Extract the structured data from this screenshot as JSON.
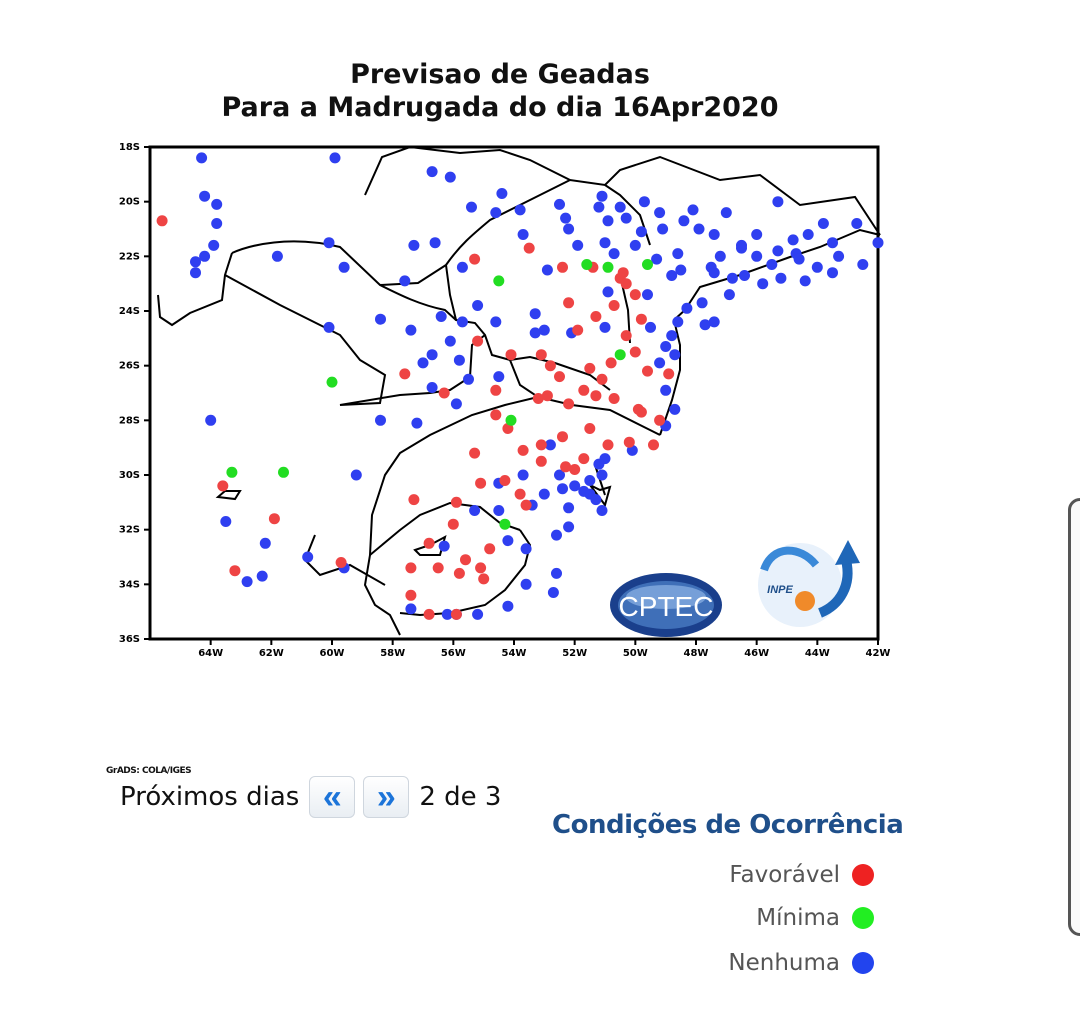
{
  "title_line1": "Previsao  de  Geadas",
  "title_line2": "Para a Madrugada do dia 16Apr2020",
  "map": {
    "lat_labels": [
      "18S",
      "20S",
      "22S",
      "24S",
      "26S",
      "28S",
      "30S",
      "32S",
      "34S",
      "36S"
    ],
    "lon_labels": [
      "64W",
      "62W",
      "60W",
      "58W",
      "56W",
      "54W",
      "52W",
      "50W",
      "48W",
      "46W",
      "44W",
      "42W"
    ],
    "logos": {
      "cptec": "CPTEC",
      "inpe": "INPE"
    },
    "colors": {
      "favoravel": "#ee4444",
      "minima": "#22dd22",
      "nenhuma": "#2f3ff0"
    },
    "stations": {
      "red": [
        [
          -65.6,
          -20.7
        ],
        [
          -63.6,
          -30.4
        ],
        [
          -63.2,
          -33.5
        ],
        [
          -61.9,
          -31.6
        ],
        [
          -59.7,
          -33.2
        ],
        [
          -57.6,
          -26.3
        ],
        [
          -54.6,
          -26.9
        ],
        [
          -54.6,
          -27.8
        ],
        [
          -54.2,
          -28.3
        ],
        [
          -52.4,
          -28.6
        ],
        [
          -51.5,
          -28.3
        ],
        [
          -50.2,
          -28.8
        ],
        [
          -50.7,
          -27.2
        ],
        [
          -49.8,
          -27.7
        ],
        [
          -49.9,
          -27.6
        ],
        [
          -49.4,
          -28.9
        ],
        [
          -49.2,
          -28.0
        ],
        [
          -49.6,
          -26.2
        ],
        [
          -48.9,
          -26.3
        ],
        [
          -50.3,
          -24.9
        ],
        [
          -51.5,
          -26.1
        ],
        [
          -51.1,
          -26.5
        ],
        [
          -52.5,
          -26.4
        ],
        [
          -53.2,
          -27.2
        ],
        [
          -51.7,
          -26.9
        ],
        [
          -52.9,
          -27.1
        ],
        [
          -52.2,
          -27.4
        ],
        [
          -51.3,
          -27.1
        ],
        [
          -50.8,
          -25.9
        ],
        [
          -50.0,
          -25.5
        ],
        [
          -51.3,
          -24.2
        ],
        [
          -51.9,
          -24.7
        ],
        [
          -49.8,
          -24.3
        ],
        [
          -50.7,
          -23.8
        ],
        [
          -52.2,
          -23.7
        ],
        [
          -50.0,
          -23.4
        ],
        [
          -50.5,
          -22.8
        ],
        [
          -50.4,
          -22.6
        ],
        [
          -51.4,
          -22.4
        ],
        [
          -50.3,
          -23.0
        ],
        [
          -52.4,
          -22.4
        ],
        [
          -53.5,
          -21.7
        ],
        [
          -55.3,
          -22.1
        ],
        [
          -55.2,
          -25.1
        ],
        [
          -53.1,
          -25.6
        ],
        [
          -54.1,
          -25.6
        ],
        [
          -52.8,
          -26.0
        ],
        [
          -56.3,
          -27.0
        ],
        [
          -55.3,
          -29.2
        ],
        [
          -53.7,
          -29.1
        ],
        [
          -53.1,
          -29.5
        ],
        [
          -52.3,
          -29.7
        ],
        [
          -52.0,
          -29.8
        ],
        [
          -50.9,
          -28.9
        ],
        [
          -51.7,
          -29.4
        ],
        [
          -53.1,
          -28.9
        ],
        [
          -53.8,
          -30.7
        ],
        [
          -54.3,
          -30.2
        ],
        [
          -53.6,
          -31.1
        ],
        [
          -55.1,
          -30.3
        ],
        [
          -55.9,
          -31.0
        ],
        [
          -56.0,
          -31.8
        ],
        [
          -57.3,
          -30.9
        ],
        [
          -56.8,
          -32.5
        ],
        [
          -56.5,
          -33.4
        ],
        [
          -55.6,
          -33.1
        ],
        [
          -55.8,
          -33.6
        ],
        [
          -55.1,
          -33.4
        ],
        [
          -55.0,
          -33.8
        ],
        [
          -57.4,
          -34.4
        ],
        [
          -56.8,
          -35.1
        ],
        [
          -55.9,
          -35.1
        ],
        [
          -54.8,
          -32.7
        ],
        [
          -57.4,
          -33.4
        ]
      ],
      "green": [
        [
          -51.6,
          -22.3
        ],
        [
          -50.9,
          -22.4
        ],
        [
          -49.6,
          -22.3
        ],
        [
          -54.5,
          -22.9
        ],
        [
          -50.5,
          -25.6
        ],
        [
          -54.1,
          -28.0
        ],
        [
          -54.3,
          -31.8
        ],
        [
          -60.0,
          -26.6
        ],
        [
          -63.3,
          -29.9
        ],
        [
          -61.6,
          -29.9
        ]
      ],
      "blue": [
        [
          -64.3,
          -18.4
        ],
        [
          -64.2,
          -19.8
        ],
        [
          -63.8,
          -20.1
        ],
        [
          -63.8,
          -20.8
        ],
        [
          -63.9,
          -21.6
        ],
        [
          -64.5,
          -22.2
        ],
        [
          -64.2,
          -22.0
        ],
        [
          -64.5,
          -22.6
        ],
        [
          -60.1,
          -21.5
        ],
        [
          -61.8,
          -22.0
        ],
        [
          -59.9,
          -18.4
        ],
        [
          -56.7,
          -18.9
        ],
        [
          -56.1,
          -19.1
        ],
        [
          -54.4,
          -19.7
        ],
        [
          -55.4,
          -20.2
        ],
        [
          -54.6,
          -20.4
        ],
        [
          -53.8,
          -20.3
        ],
        [
          -52.3,
          -20.6
        ],
        [
          -52.5,
          -20.1
        ],
        [
          -51.1,
          -19.8
        ],
        [
          -49.2,
          -20.4
        ],
        [
          -49.1,
          -21.0
        ],
        [
          -48.4,
          -20.7
        ],
        [
          -47.4,
          -21.2
        ],
        [
          -45.3,
          -20.0
        ],
        [
          -45.3,
          -21.8
        ],
        [
          -43.8,
          -20.8
        ],
        [
          -44.3,
          -21.2
        ],
        [
          -42.7,
          -20.8
        ],
        [
          -42.0,
          -21.5
        ],
        [
          -43.5,
          -22.6
        ],
        [
          -42.5,
          -22.3
        ],
        [
          -41.8,
          -22.0
        ],
        [
          -41.1,
          -20.7
        ],
        [
          -46.0,
          -22.0
        ],
        [
          -46.4,
          -22.7
        ],
        [
          -45.5,
          -22.3
        ],
        [
          -45.2,
          -22.8
        ],
        [
          -46.9,
          -23.4
        ],
        [
          -47.8,
          -23.7
        ],
        [
          -48.3,
          -23.9
        ],
        [
          -47.4,
          -24.4
        ],
        [
          -48.6,
          -24.4
        ],
        [
          -49.6,
          -23.4
        ],
        [
          -48.5,
          -22.5
        ],
        [
          -47.2,
          -22.0
        ],
        [
          -46.5,
          -21.7
        ],
        [
          -46.0,
          -21.2
        ],
        [
          -47.0,
          -20.4
        ],
        [
          -46.5,
          -21.6
        ],
        [
          -47.5,
          -22.4
        ],
        [
          -48.6,
          -21.9
        ],
        [
          -50.3,
          -20.6
        ],
        [
          -50.0,
          -21.6
        ],
        [
          -49.8,
          -21.1
        ],
        [
          -50.7,
          -21.9
        ],
        [
          -52.2,
          -21.0
        ],
        [
          -51.2,
          -20.2
        ],
        [
          -50.9,
          -20.7
        ],
        [
          -51.0,
          -21.5
        ],
        [
          -51.9,
          -21.6
        ],
        [
          -52.9,
          -22.5
        ],
        [
          -53.7,
          -21.2
        ],
        [
          -55.7,
          -22.4
        ],
        [
          -56.6,
          -21.5
        ],
        [
          -57.3,
          -21.6
        ],
        [
          -57.6,
          -22.9
        ],
        [
          -58.4,
          -24.3
        ],
        [
          -59.6,
          -22.4
        ],
        [
          -60.1,
          -24.6
        ],
        [
          -57.4,
          -24.7
        ],
        [
          -56.4,
          -24.2
        ],
        [
          -55.7,
          -24.4
        ],
        [
          -56.7,
          -25.6
        ],
        [
          -55.2,
          -23.8
        ],
        [
          -54.6,
          -24.4
        ],
        [
          -53.3,
          -24.1
        ],
        [
          -52.1,
          -24.8
        ],
        [
          -53.3,
          -24.8
        ],
        [
          -53.0,
          -24.7
        ],
        [
          -51.0,
          -24.6
        ],
        [
          -48.8,
          -24.9
        ],
        [
          -49.0,
          -25.3
        ],
        [
          -47.7,
          -24.5
        ],
        [
          -48.7,
          -25.6
        ],
        [
          -49.2,
          -25.9
        ],
        [
          -49.0,
          -26.9
        ],
        [
          -48.7,
          -27.6
        ],
        [
          -49.0,
          -28.2
        ],
        [
          -50.1,
          -29.1
        ],
        [
          -51.0,
          -29.4
        ],
        [
          -51.2,
          -29.6
        ],
        [
          -51.1,
          -30.0
        ],
        [
          -51.5,
          -30.2
        ],
        [
          -52.0,
          -30.4
        ],
        [
          -52.4,
          -30.5
        ],
        [
          -53.0,
          -30.7
        ],
        [
          -52.2,
          -31.2
        ],
        [
          -51.1,
          -31.3
        ],
        [
          -52.2,
          -31.9
        ],
        [
          -53.4,
          -31.1
        ],
        [
          -54.5,
          -30.3
        ],
        [
          -55.3,
          -31.3
        ],
        [
          -56.3,
          -32.6
        ],
        [
          -54.2,
          -32.4
        ],
        [
          -53.6,
          -32.7
        ],
        [
          -52.6,
          -32.2
        ],
        [
          -52.6,
          -33.6
        ],
        [
          -53.6,
          -34.0
        ],
        [
          -52.7,
          -34.3
        ],
        [
          -54.2,
          -34.8
        ],
        [
          -55.2,
          -35.1
        ],
        [
          -55.9,
          -35.1
        ],
        [
          -56.2,
          -35.1
        ],
        [
          -57.4,
          -34.9
        ],
        [
          -59.6,
          -33.4
        ],
        [
          -60.8,
          -33.0
        ],
        [
          -62.2,
          -32.5
        ],
        [
          -62.3,
          -33.7
        ],
        [
          -62.8,
          -33.9
        ],
        [
          -63.5,
          -31.7
        ],
        [
          -64.0,
          -28.0
        ],
        [
          -59.2,
          -30.0
        ],
        [
          -57.2,
          -28.1
        ],
        [
          -58.4,
          -28.0
        ],
        [
          -56.7,
          -26.8
        ],
        [
          -57.0,
          -25.9
        ],
        [
          -56.1,
          -25.1
        ],
        [
          -55.8,
          -25.8
        ],
        [
          -55.5,
          -26.5
        ],
        [
          -55.9,
          -27.4
        ],
        [
          -54.5,
          -26.4
        ],
        [
          -52.8,
          -28.9
        ],
        [
          -52.5,
          -30.0
        ],
        [
          -51.5,
          -30.7
        ],
        [
          -54.5,
          -31.3
        ],
        [
          -53.7,
          -30.0
        ],
        [
          -51.3,
          -30.9
        ],
        [
          -51.7,
          -30.6
        ],
        [
          -50.5,
          -20.2
        ],
        [
          -49.7,
          -20.0
        ],
        [
          -48.1,
          -20.3
        ],
        [
          -47.9,
          -21.0
        ],
        [
          -47.4,
          -22.6
        ],
        [
          -45.8,
          -23.0
        ],
        [
          -44.7,
          -21.9
        ],
        [
          -44.4,
          -22.9
        ],
        [
          -43.3,
          -22.0
        ],
        [
          -44.8,
          -21.4
        ],
        [
          -43.5,
          -21.5
        ],
        [
          -48.8,
          -22.7
        ],
        [
          -49.3,
          -22.1
        ],
        [
          -50.9,
          -23.3
        ],
        [
          -49.5,
          -24.6
        ],
        [
          -46.8,
          -22.8
        ],
        [
          -44.0,
          -22.4
        ],
        [
          -44.6,
          -22.1
        ]
      ]
    }
  },
  "grads_credit": "GrADS: COLA/IGES",
  "pager": {
    "label": "Próximos dias",
    "prev_glyph": "«",
    "next_glyph": "»",
    "count": "2 de 3"
  },
  "legend": {
    "title": "Condições de Ocorrência",
    "items": [
      {
        "label": "Favorável",
        "color": "#ee2222"
      },
      {
        "label": "Mínima",
        "color": "#22ee22"
      },
      {
        "label": "Nenhuma",
        "color": "#2244ee"
      }
    ]
  }
}
